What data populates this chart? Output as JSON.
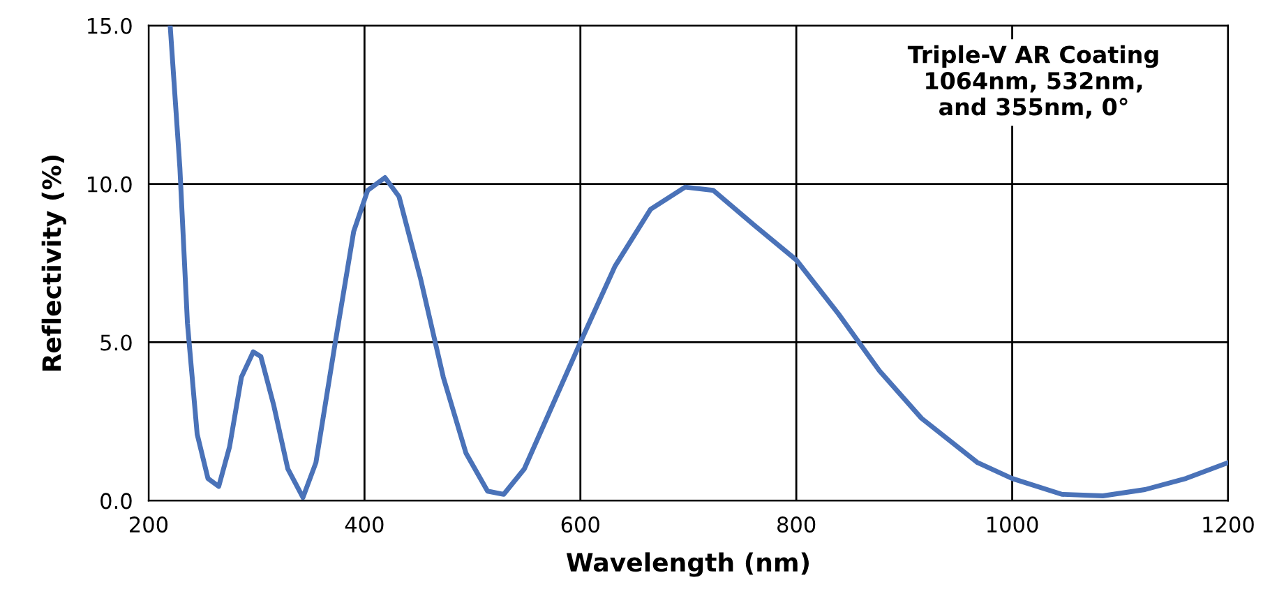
{
  "chart_data": {
    "type": "line",
    "xlabel": "Wavelength (nm)",
    "ylabel": "Reflectivity (%)",
    "annotations": [
      "Triple-V AR Coating\n1064nm, 532nm,\nand 355nm, 0°"
    ],
    "x": [
      220,
      229,
      236,
      245,
      255,
      265,
      275,
      286,
      297,
      304,
      316,
      329,
      343,
      355,
      372,
      390,
      403,
      419,
      432,
      452,
      473,
      494,
      514,
      529,
      548,
      574,
      600,
      632,
      665,
      697,
      723,
      761,
      800,
      839,
      877,
      916,
      968,
      1000,
      1046,
      1084,
      1123,
      1161,
      1200
    ],
    "series": [
      {
        "color": "#4a72b8",
        "values": [
          15.0,
          10.5,
          5.6,
          2.1,
          0.7,
          0.45,
          1.7,
          3.9,
          4.7,
          4.55,
          3.0,
          1.0,
          0.1,
          1.2,
          4.8,
          8.5,
          9.8,
          10.2,
          9.6,
          7.0,
          3.9,
          1.5,
          0.3,
          0.2,
          1.0,
          3.0,
          5.0,
          7.4,
          9.2,
          9.9,
          9.8,
          8.7,
          7.6,
          5.9,
          4.1,
          2.6,
          1.2,
          0.7,
          0.2,
          0.15,
          0.35,
          0.7,
          1.2
        ]
      }
    ],
    "xlim": [
      200,
      1200
    ],
    "ylim": [
      0,
      15
    ],
    "xticks": [
      200,
      400,
      600,
      800,
      1000,
      1200
    ],
    "yticks": [
      {
        "value": 0,
        "label": "0.0"
      },
      {
        "value": 5,
        "label": "5.0"
      },
      {
        "value": 10,
        "label": "10.0"
      },
      {
        "value": 15,
        "label": "15.0"
      }
    ],
    "grid": true,
    "legend": false,
    "marker": "none",
    "line_style": "solid"
  }
}
